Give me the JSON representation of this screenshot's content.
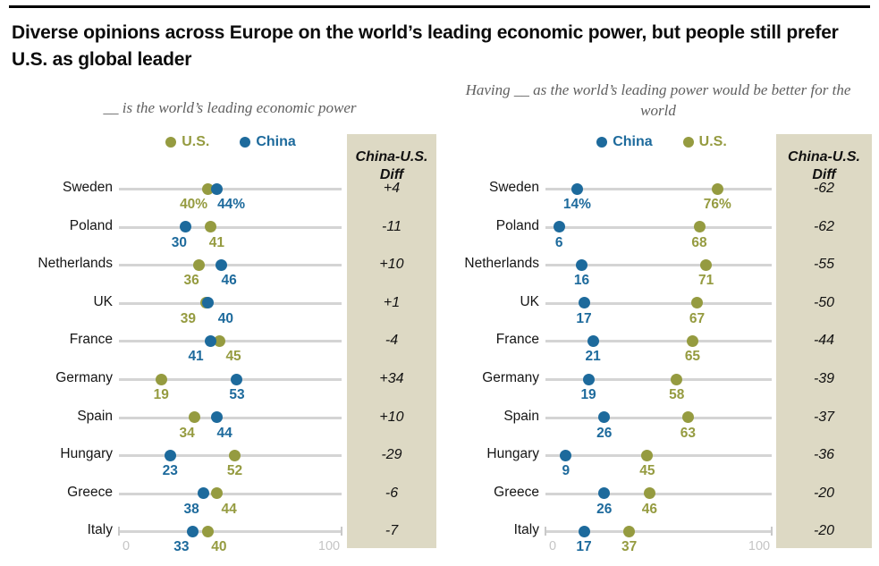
{
  "page": {
    "title": "Diverse opinions across Europe on the world’s leading economic power, but people still prefer U.S. as global leader"
  },
  "colors": {
    "us": "#959b40",
    "china": "#1d6a9c",
    "track": "#d4d4d4",
    "diff_background": "#ddd9c4",
    "axis_text": "#c5c5c5"
  },
  "chart_data": [
    {
      "type": "scatter",
      "subtitle": "__ is the world’s leading economic power",
      "diff_header": "China-U.S. Diff",
      "categories": [
        "Sweden",
        "Poland",
        "Netherlands",
        "UK",
        "France",
        "Germany",
        "Spain",
        "Hungary",
        "Greece",
        "Italy"
      ],
      "legend": [
        {
          "label": "U.S.",
          "color": "#959b40"
        },
        {
          "label": "China",
          "color": "#1d6a9c"
        }
      ],
      "series": [
        {
          "name": "U.S.",
          "color": "#959b40",
          "values": [
            40,
            41,
            36,
            39,
            45,
            19,
            34,
            52,
            44,
            40
          ]
        },
        {
          "name": "China",
          "color": "#1d6a9c",
          "values": [
            44,
            30,
            46,
            40,
            41,
            53,
            44,
            23,
            38,
            33
          ]
        }
      ],
      "first_row_suffix": "%",
      "diff_values": [
        "+4",
        "-11",
        "+10",
        "+1",
        "-4",
        "+34",
        "+10",
        "-29",
        "-6",
        "-7"
      ],
      "xlim": [
        0,
        100
      ],
      "axis_ticks": [
        "0",
        "100"
      ]
    },
    {
      "type": "scatter",
      "subtitle": "Having __ as the world’s leading power would be better for the world",
      "diff_header": "China-U.S. Diff",
      "categories": [
        "Sweden",
        "Poland",
        "Netherlands",
        "UK",
        "France",
        "Germany",
        "Spain",
        "Hungary",
        "Greece",
        "Italy"
      ],
      "legend": [
        {
          "label": "China",
          "color": "#1d6a9c"
        },
        {
          "label": "U.S.",
          "color": "#959b40"
        }
      ],
      "series": [
        {
          "name": "China",
          "color": "#1d6a9c",
          "values": [
            14,
            6,
            16,
            17,
            21,
            19,
            26,
            9,
            26,
            17
          ]
        },
        {
          "name": "U.S.",
          "color": "#959b40",
          "values": [
            76,
            68,
            71,
            67,
            65,
            58,
            63,
            45,
            46,
            37
          ]
        }
      ],
      "first_row_suffix": "%",
      "diff_values": [
        "-62",
        "-62",
        "-55",
        "-50",
        "-44",
        "-39",
        "-37",
        "-36",
        "-20",
        "-20"
      ],
      "xlim": [
        0,
        100
      ],
      "axis_ticks": [
        "0",
        "100"
      ]
    }
  ]
}
